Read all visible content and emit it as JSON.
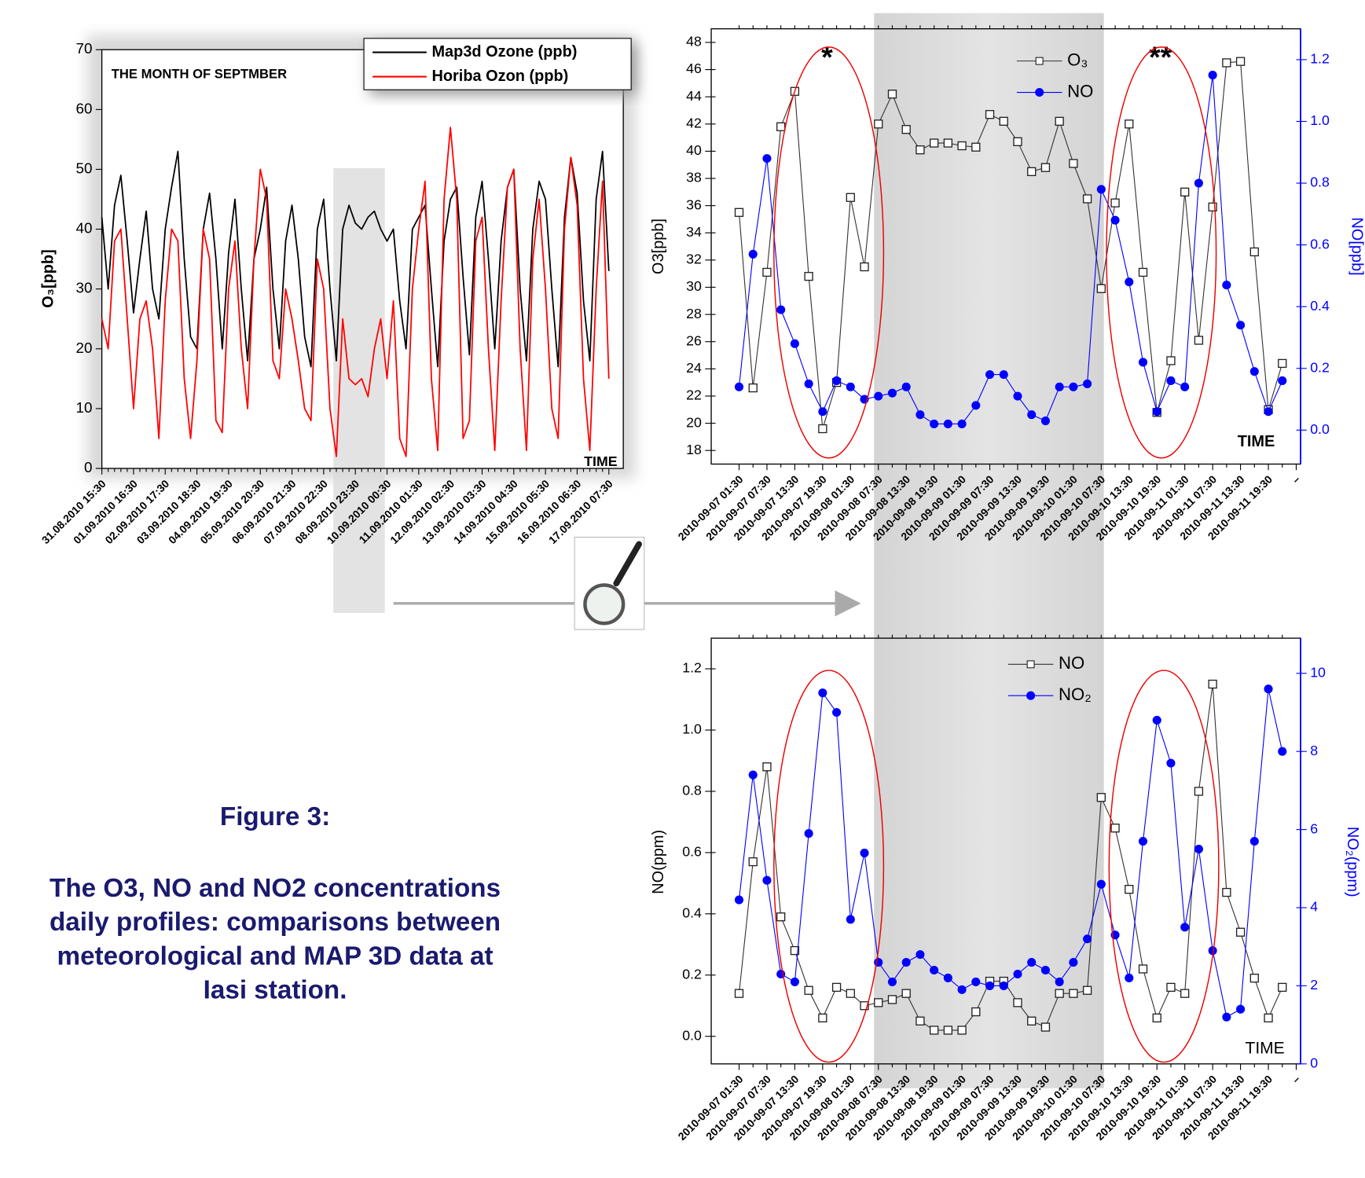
{
  "chart_data": [
    {
      "type": "line",
      "ylabel": "O₃[ppb]",
      "xlabel": "TIME",
      "annotations": [
        "THE MONTH OF SEPTMBER"
      ],
      "categories": [
        "31.08.2010 15:30",
        null,
        null,
        null,
        null,
        "01.09.2010 16:30",
        null,
        null,
        null,
        null,
        "02.09.2010 17:30",
        null,
        null,
        null,
        null,
        "03.09.2010 18:30",
        null,
        null,
        null,
        null,
        "04.09.2010 19:30",
        null,
        null,
        null,
        null,
        "05.09.2010 20:30",
        null,
        null,
        null,
        null,
        "06.09.2010 21:30",
        null,
        null,
        null,
        null,
        "07.09.2010 22:30",
        null,
        null,
        null,
        null,
        "08.09.2010 23:30",
        null,
        null,
        null,
        null,
        "10.09.2010 00:30",
        null,
        null,
        null,
        null,
        "11.09.2010 01:30",
        null,
        null,
        null,
        null,
        "12.09.2010 02:30",
        null,
        null,
        null,
        null,
        "13.09.2010 03:30",
        null,
        null,
        null,
        null,
        "14.09.2010 04:30",
        null,
        null,
        null,
        null,
        "15.09.2010 05:30",
        null,
        null,
        null,
        null,
        "16.09.2010 06:30",
        null,
        null,
        null,
        null,
        "17.09.2010 07:30"
      ],
      "ylim": [
        0,
        70
      ],
      "yticks": [
        0,
        10,
        20,
        30,
        40,
        50,
        60,
        70
      ],
      "legend": "upper right",
      "series": [
        {
          "name": "Map3d Ozone (ppb)",
          "color": "#000000",
          "values": [
            42,
            30,
            44,
            49,
            38,
            26,
            35,
            43,
            30,
            25,
            40,
            47,
            53,
            35,
            22,
            20,
            40,
            46,
            35,
            20,
            36,
            45,
            30,
            18,
            35,
            40,
            47,
            30,
            20,
            38,
            44,
            35,
            22,
            17,
            40,
            45,
            30,
            18,
            40,
            44,
            41,
            40,
            42,
            43,
            40,
            38,
            40,
            28,
            20,
            40,
            42,
            44,
            30,
            17,
            38,
            45,
            47,
            32,
            19,
            42,
            48,
            35,
            20,
            38,
            47,
            50,
            30,
            18,
            40,
            48,
            45,
            30,
            17,
            42,
            52,
            46,
            28,
            18,
            45,
            53,
            33
          ]
        },
        {
          "name": "Horiba Ozon (ppb)",
          "color": "#ff0000",
          "values": [
            25,
            20,
            38,
            40,
            25,
            10,
            25,
            28,
            20,
            5,
            28,
            40,
            38,
            15,
            5,
            18,
            40,
            35,
            8,
            6,
            30,
            38,
            20,
            10,
            35,
            50,
            45,
            18,
            15,
            30,
            25,
            18,
            10,
            8,
            35,
            30,
            10,
            2,
            25,
            15,
            14,
            15,
            12,
            20,
            25,
            15,
            28,
            5,
            2,
            30,
            40,
            48,
            15,
            3,
            45,
            57,
            45,
            5,
            8,
            38,
            42,
            20,
            3,
            28,
            47,
            50,
            20,
            3,
            35,
            45,
            30,
            10,
            5,
            40,
            52,
            44,
            15,
            3,
            30,
            48,
            15
          ]
        }
      ]
    },
    {
      "type": "line",
      "ylabel": "O3[ppb]",
      "y2label": "NO[ppb]",
      "xlabel": "TIME",
      "annotations": [
        "*",
        "**"
      ],
      "categories": [
        "2010-09-07 01:30",
        null,
        "2010-09-07 07:30",
        null,
        "2010-09-07 13:30",
        null,
        "2010-09-07 19:30",
        null,
        "2010-09-08 01:30",
        null,
        "2010-09-08 07:30",
        null,
        "2010-09-08 13:30",
        null,
        "2010-09-08 19:30",
        null,
        "2010-09-09 01:30",
        null,
        "2010-09-09 07:30",
        null,
        "2010-09-09 13:30",
        null,
        "2010-09-09 19:30",
        null,
        "2010-09-10 01:30",
        null,
        "2010-09-10 07:30",
        null,
        "2010-09-10 13:30",
        null,
        "2010-09-10 19:30",
        null,
        "2010-09-11 01:30",
        null,
        "2010-09-11 07:30",
        null,
        "2010-09-11 13:30",
        null,
        "2010-09-11 19:30",
        null
      ],
      "x_end_label": "–",
      "ylim": [
        17,
        49
      ],
      "yticks": [
        18,
        20,
        22,
        24,
        26,
        28,
        30,
        32,
        34,
        36,
        38,
        40,
        42,
        44,
        46,
        48
      ],
      "y2lim": [
        -0.11,
        1.3
      ],
      "y2ticks": [
        {
          "value": 0,
          "label": "0.0"
        },
        0.2,
        0.4,
        0.6,
        0.8,
        {
          "value": 1,
          "label": "1.0"
        },
        1.2
      ],
      "legend": "upper center",
      "series": [
        {
          "name": "O₃",
          "color": "#000000",
          "marker": "open-square",
          "axis": "y",
          "values": [
            35.5,
            22.6,
            31.1,
            41.8,
            44.4,
            30.8,
            19.6,
            23.0,
            36.6,
            31.5,
            42.0,
            44.2,
            41.6,
            40.1,
            40.6,
            40.6,
            40.4,
            40.3,
            42.7,
            42.2,
            40.7,
            38.5,
            38.8,
            42.2,
            39.1,
            36.5,
            29.9,
            36.2,
            42.0,
            31.1,
            20.8,
            24.6,
            37.0,
            26.1,
            35.9,
            46.5,
            46.6,
            32.6,
            21.0,
            24.4
          ]
        },
        {
          "name": "NO",
          "color": "#0000ff",
          "marker": "filled-circle",
          "axis": "y2",
          "values": [
            0.14,
            0.57,
            0.88,
            0.39,
            0.28,
            0.15,
            0.06,
            0.16,
            0.14,
            0.1,
            0.11,
            0.12,
            0.14,
            0.05,
            0.02,
            0.02,
            0.02,
            0.08,
            0.18,
            0.18,
            0.11,
            0.05,
            0.03,
            0.14,
            0.14,
            0.15,
            0.78,
            0.68,
            0.48,
            0.22,
            0.06,
            0.16,
            0.14,
            0.8,
            1.15,
            0.47,
            0.34,
            0.19,
            0.06,
            0.16
          ]
        }
      ]
    },
    {
      "type": "line",
      "ylabel": "NO(ppm)",
      "y2label": "NO₂(ppm)",
      "xlabel": "TIME",
      "categories": [
        "2010-09-07 01:30",
        null,
        "2010-09-07 07:30",
        null,
        "2010-09-07 13:30",
        null,
        "2010-09-07 19:30",
        null,
        "2010-09-08 01:30",
        null,
        "2010-09-08 07:30",
        null,
        "2010-09-08 13:30",
        null,
        "2010-09-08 19:30",
        null,
        "2010-09-09 01:30",
        null,
        "2010-09-09 07:30",
        null,
        "2010-09-09 13:30",
        null,
        "2010-09-09 19:30",
        null,
        "2010-09-10 01:30",
        null,
        "2010-09-10 07:30",
        null,
        "2010-09-10 13:30",
        null,
        "2010-09-10 19:30",
        null,
        "2010-09-11 01:30",
        null,
        "2010-09-11 07:30",
        null,
        "2010-09-11 13:30",
        null,
        "2010-09-11 19:30",
        null
      ],
      "x_end_label": "–",
      "ylim": [
        -0.09,
        1.3
      ],
      "yticks": [
        {
          "value": 0,
          "label": "0.0"
        },
        0.2,
        0.4,
        0.6,
        0.8,
        {
          "value": 1,
          "label": "1.0"
        },
        1.2
      ],
      "y2lim": [
        0,
        10.9
      ],
      "y2ticks": [
        0,
        2,
        4,
        6,
        8,
        10
      ],
      "legend": "upper center",
      "series": [
        {
          "name": "NO",
          "color": "#000000",
          "marker": "open-square",
          "axis": "y",
          "values": [
            0.14,
            0.57,
            0.88,
            0.39,
            0.28,
            0.15,
            0.06,
            0.16,
            0.14,
            0.1,
            0.11,
            0.12,
            0.14,
            0.05,
            0.02,
            0.02,
            0.02,
            0.08,
            0.18,
            0.18,
            0.11,
            0.05,
            0.03,
            0.14,
            0.14,
            0.15,
            0.78,
            0.68,
            0.48,
            0.22,
            0.06,
            0.16,
            0.14,
            0.8,
            1.15,
            0.47,
            0.34,
            0.19,
            0.06,
            0.16
          ]
        },
        {
          "name": "NO₂",
          "color": "#0000ff",
          "marker": "filled-circle",
          "axis": "y2",
          "values": [
            4.2,
            7.4,
            4.7,
            2.3,
            2.1,
            5.9,
            9.5,
            9.0,
            3.7,
            5.4,
            2.6,
            2.1,
            2.6,
            2.8,
            2.4,
            2.2,
            1.9,
            2.1,
            2.0,
            2.0,
            2.3,
            2.6,
            2.4,
            2.1,
            2.6,
            3.2,
            4.6,
            3.3,
            2.2,
            5.7,
            8.8,
            7.7,
            3.5,
            5.5,
            2.9,
            1.2,
            1.4,
            5.7,
            9.6,
            8.0
          ]
        }
      ]
    }
  ],
  "caption": {
    "label": "Figure 3:",
    "lines": [
      "The O3, NO and NO2 concentrations",
      "daily profiles: comparisons between",
      "meteorological and MAP 3D data at",
      "Iasi station."
    ]
  }
}
